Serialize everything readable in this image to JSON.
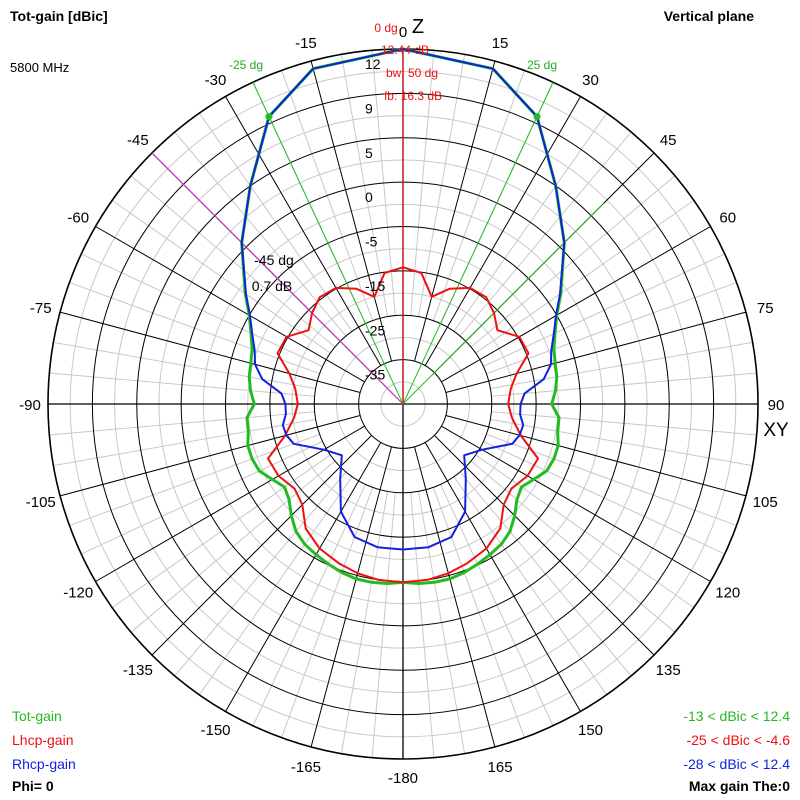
{
  "header": {
    "title": "Tot-gain [dBic]",
    "frequency": "5800 MHz",
    "plane": "Vertical plane"
  },
  "axis_labels": {
    "z": "Z",
    "xy": "XY"
  },
  "marker_main": [
    "0 dg",
    "12.44 dB",
    "bw: 50 dg",
    "fb: 16.3 dB"
  ],
  "marker_cursor": [
    "-45 dg",
    "0.7 dB"
  ],
  "beamwidth_labels": {
    "left": "-25 dg",
    "right": "25 dg"
  },
  "legend": [
    {
      "label": "Tot-gain",
      "color": "#22bb22",
      "range": "-13 < dBic < 12.4"
    },
    {
      "label": "Lhcp-gain",
      "color": "#ee1111",
      "range": "-25 < dBic < -4.6"
    },
    {
      "label": "Rhcp-gain",
      "color": "#1122dd",
      "range": "-28 < dBic < 12.4"
    }
  ],
  "footer": {
    "phi": "Phi= 0",
    "max_gain": "Max gain The:0"
  },
  "colors": {
    "grid": "#000000",
    "fine_grid": "#c8c8c8",
    "main_marker": "#ee1111",
    "cursor_marker": "#cc33cc"
  },
  "chart_data": {
    "type": "polar",
    "angle_unit": "deg",
    "angle_labels": [
      "0",
      "15",
      "30",
      "45",
      "60",
      "75",
      "90",
      "105",
      "120",
      "135",
      "150",
      "165",
      "-180",
      "-165",
      "-150",
      "-135",
      "-120",
      "-105",
      "-90",
      "-75",
      "-60",
      "-45",
      "-30",
      "-15"
    ],
    "radial_labels": [
      "12",
      "9",
      "5",
      "0",
      "-5",
      "-15",
      "-25",
      "-35"
    ],
    "radial_scale": {
      "db": [
        12.4,
        9,
        5,
        0,
        -5,
        -15,
        -25,
        -35
      ],
      "r": [
        1.0,
        0.875,
        0.75,
        0.625,
        0.5,
        0.375,
        0.25,
        0.125
      ]
    },
    "series": [
      {
        "name": "Tot-gain",
        "color": "#22bb22",
        "width": 3,
        "theta": [
          0,
          15,
          25,
          35,
          45,
          55,
          60,
          65,
          70,
          75,
          80,
          85,
          90,
          95,
          100,
          105,
          110,
          115,
          120,
          125,
          130,
          135,
          140,
          145,
          150,
          155,
          160,
          165,
          170,
          175,
          180
        ],
        "gain": [
          12.4,
          11.8,
          9.5,
          5,
          0.7,
          -3.3,
          -5,
          -7.2,
          -8.8,
          -9.5,
          -9.8,
          -10.5,
          -11.5,
          -9.7,
          -9.6,
          -8.8,
          -8.8,
          -9.3,
          -11,
          -12.4,
          -11.5,
          -9.4,
          -7.5,
          -6.4,
          -5.8,
          -5.2,
          -4.8,
          -4.6,
          -4.6,
          -4.7,
          -4.9
        ]
      },
      {
        "name": "Lhcp-gain",
        "color": "#ee1111",
        "width": 2,
        "theta": [
          0,
          8,
          15,
          22,
          30,
          38,
          45,
          52,
          60,
          68,
          75,
          82,
          90,
          97,
          105,
          112,
          120,
          128,
          135,
          142,
          150,
          158,
          165,
          172,
          180
        ],
        "gain": [
          -14.2,
          -15.2,
          -20,
          -17,
          -14.8,
          -14.5,
          -16,
          -18,
          -14.7,
          -14.5,
          -18.5,
          -20.5,
          -21.3,
          -20.3,
          -17.5,
          -12.2,
          -12.6,
          -14,
          -12.9,
          -9.4,
          -7.4,
          -6.3,
          -5.5,
          -5.0,
          -4.9
        ]
      },
      {
        "name": "Rhcp-gain",
        "color": "#1122dd",
        "width": 2,
        "theta": [
          0,
          15,
          25,
          35,
          45,
          55,
          60,
          65,
          70,
          75,
          80,
          85,
          90,
          95,
          100,
          105,
          110,
          120,
          130,
          140,
          150,
          160,
          170,
          180
        ],
        "gain": [
          12.4,
          11.8,
          9.5,
          5,
          0.7,
          -3.4,
          -5.2,
          -7.5,
          -9.4,
          -10.5,
          -12.8,
          -17.5,
          -18.5,
          -18.5,
          -17.5,
          -17.8,
          -18.8,
          -24.4,
          -27,
          -23,
          -17,
          -13.1,
          -12.2,
          -12.2
        ]
      }
    ],
    "markers": [
      {
        "theta": 0,
        "label": "main beam"
      },
      {
        "theta": -25,
        "label": "beamwidth edge"
      },
      {
        "theta": 25,
        "label": "beamwidth edge"
      },
      {
        "theta": -45,
        "label": "cursor"
      }
    ]
  }
}
